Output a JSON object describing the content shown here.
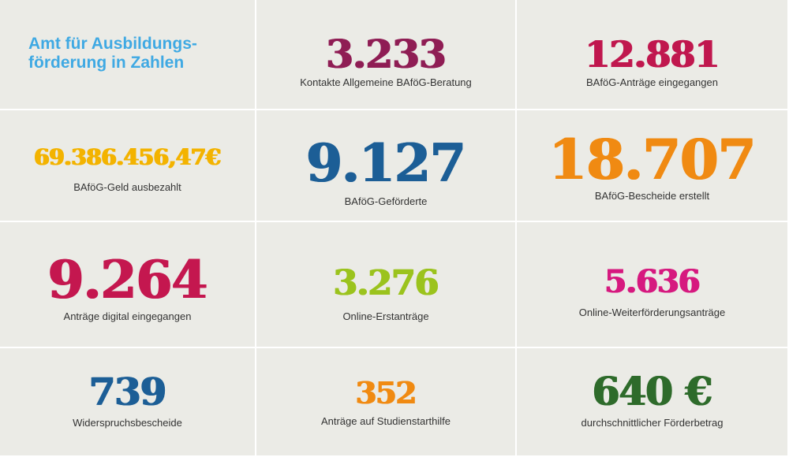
{
  "title": {
    "line1": "Amt für Ausbildungs-",
    "line2": "förderung in Zahlen"
  },
  "stats": [
    {
      "value": "3.233",
      "label": "Kontakte Allgemeine BAföG-Beratung",
      "color": "#8f1d54"
    },
    {
      "value": "12.881",
      "label": "BAföG-Anträge eingegangen",
      "color": "#c0174e"
    },
    {
      "value": "69.386.456,47€",
      "label": "BAföG-Geld ausbezahlt",
      "color": "#f3b300"
    },
    {
      "value": "9.127",
      "label": "BAföG-Geförderte",
      "color": "#1c5e96"
    },
    {
      "value": "18.707",
      "label": "BAföG-Bescheide erstellt",
      "color": "#f08a12"
    },
    {
      "value": "9.264",
      "label": "Anträge digital eingegangen",
      "color": "#c4174f"
    },
    {
      "value": "3.276",
      "label": "Online-Erstanträge",
      "color": "#9bc31d"
    },
    {
      "value": "5.636",
      "label": "Online-Weiterförderungsanträge",
      "color": "#d6197f"
    },
    {
      "value": "739",
      "label": "Widerspruchsbescheide",
      "color": "#1c5e96"
    },
    {
      "value": "352",
      "label": "Anträge auf Studienstarthilfe",
      "color": "#f08a12"
    },
    {
      "value": "640 €",
      "label": "durchschnittlicher Förderbetrag",
      "color": "#2e6b2b"
    }
  ]
}
